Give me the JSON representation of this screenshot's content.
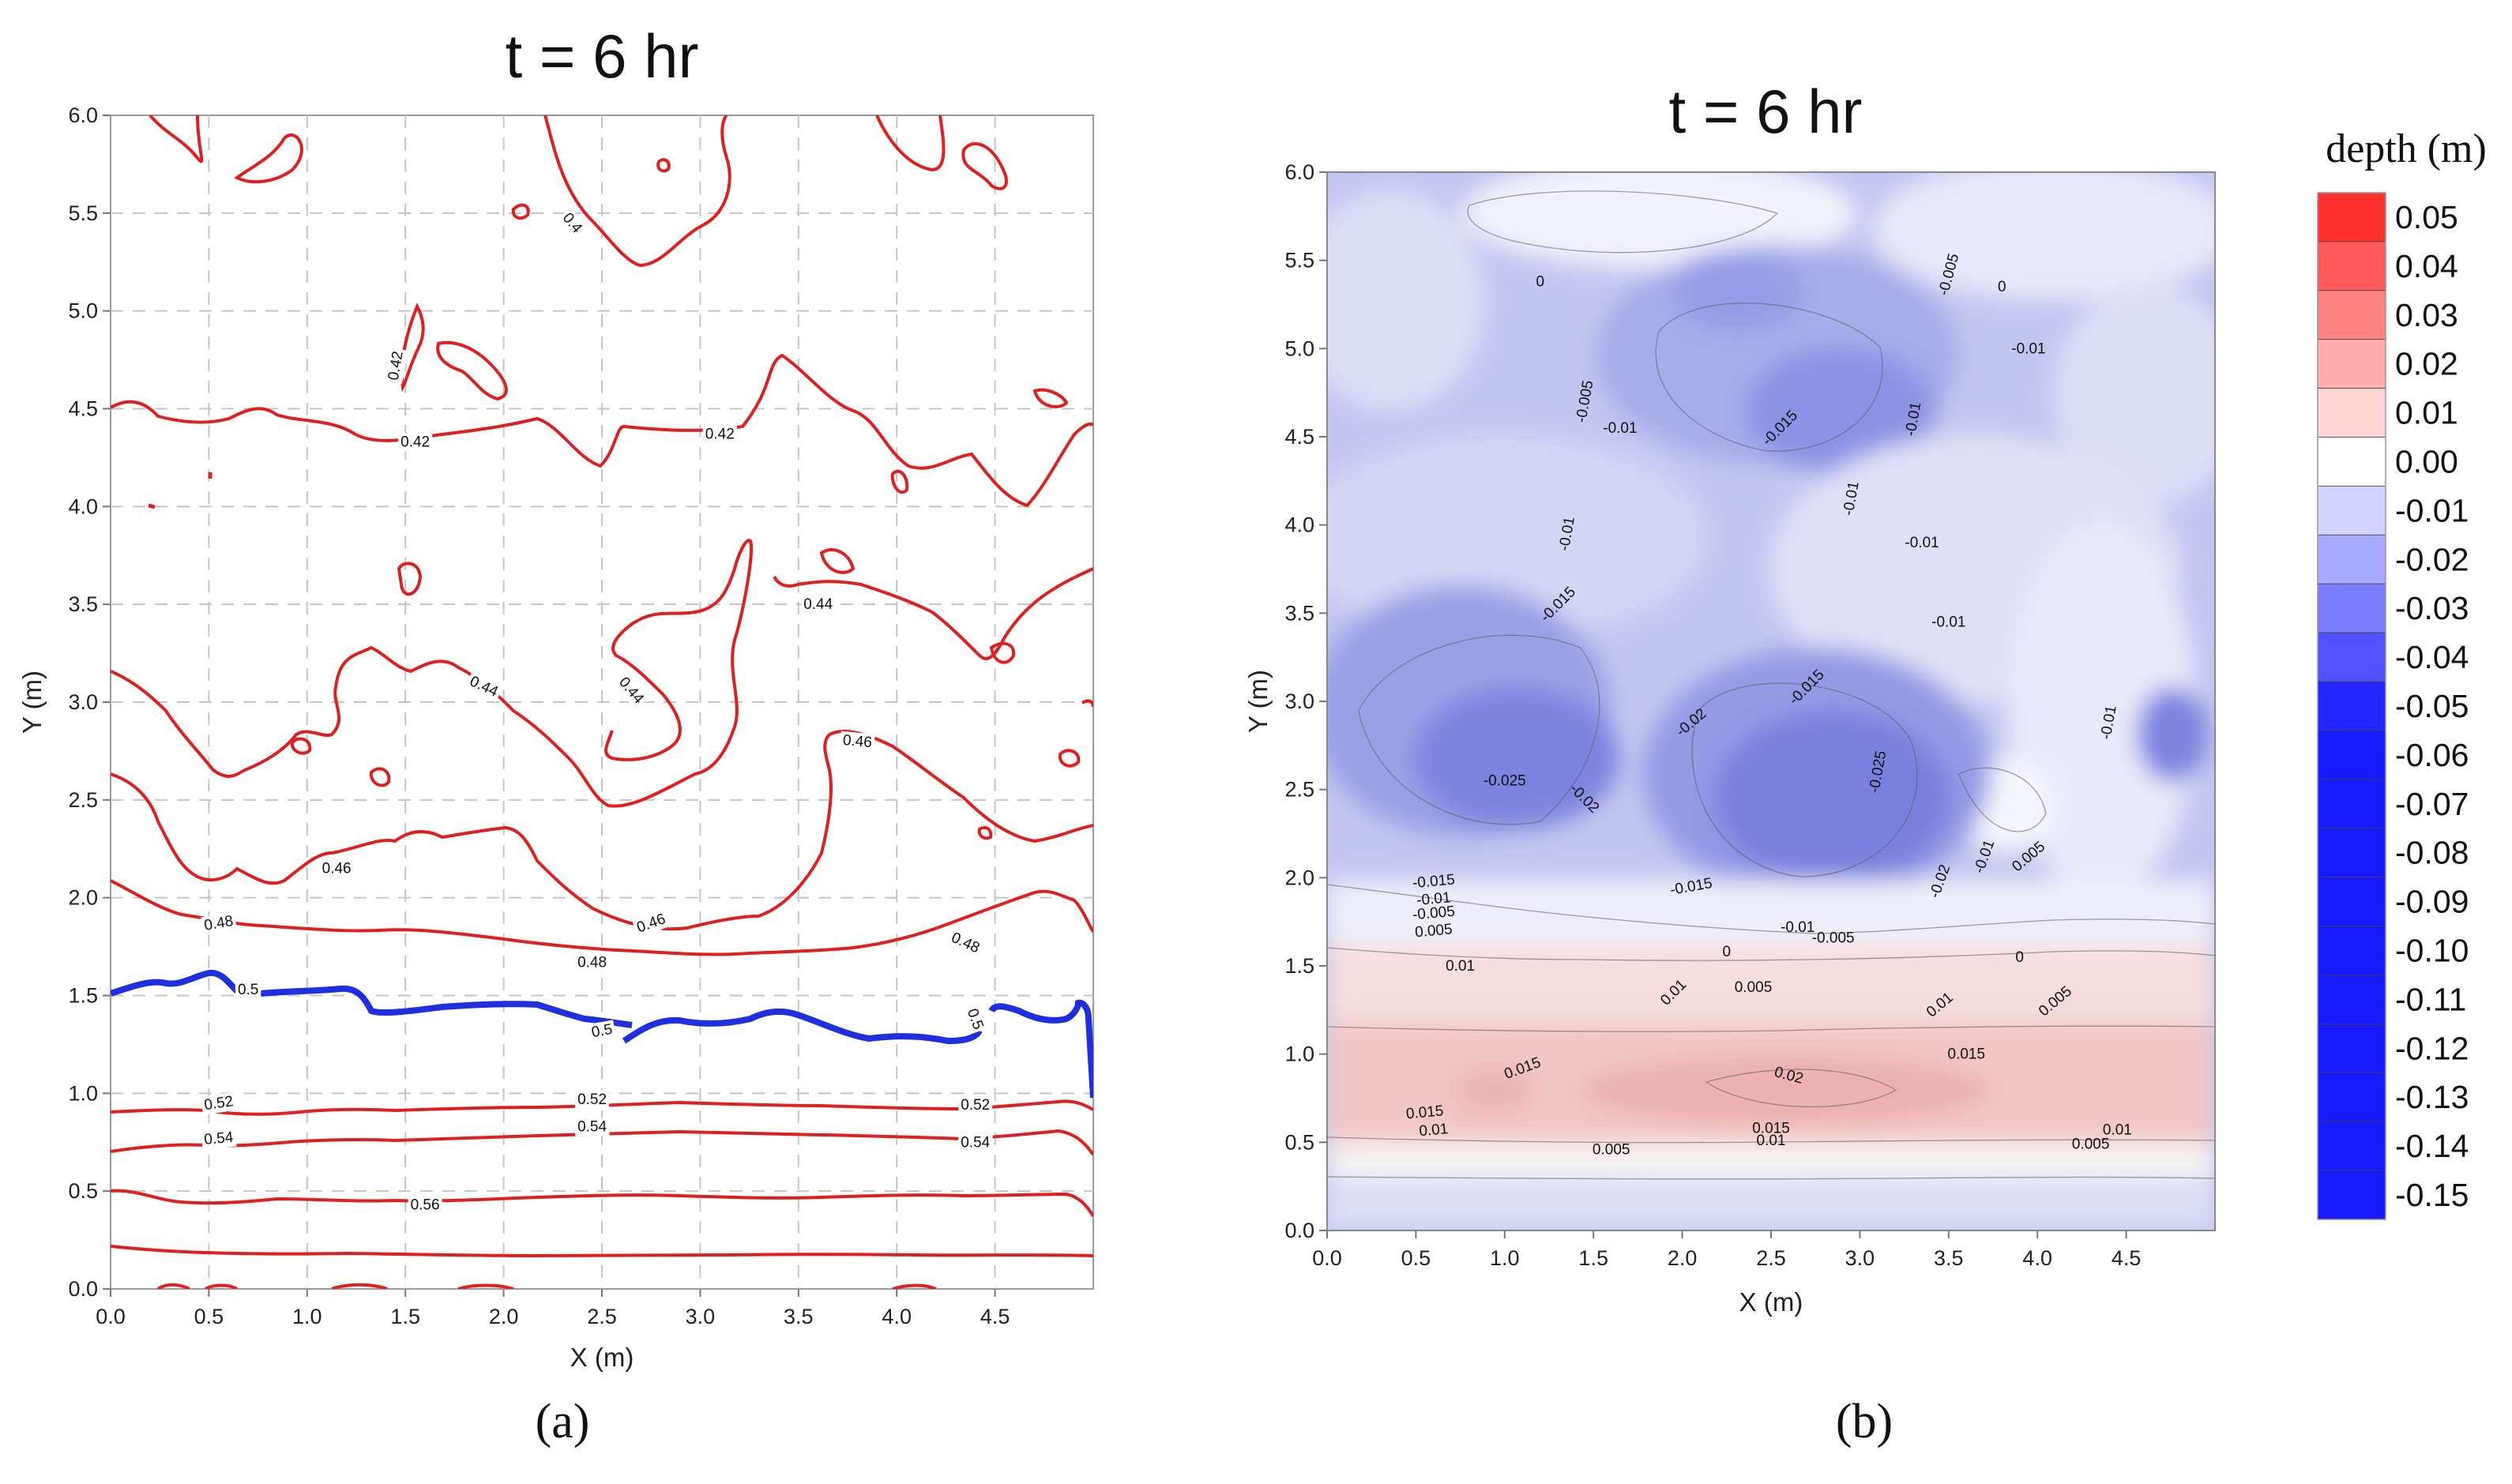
{
  "chart_data": [
    {
      "panel": "a",
      "type": "contour",
      "title": "t = 6 hr",
      "xlabel": "X (m)",
      "ylabel": "Y (m)",
      "xlim": [
        0,
        5.0
      ],
      "ylim": [
        0,
        6.0
      ],
      "xticks": [
        "0.0",
        "0.5",
        "1.0",
        "1.5",
        "2.0",
        "2.5",
        "3.0",
        "3.5",
        "4.0",
        "4.5"
      ],
      "yticks": [
        "0.0",
        "0.5",
        "1.0",
        "1.5",
        "2.0",
        "2.5",
        "3.0",
        "3.5",
        "4.0",
        "4.5",
        "5.0",
        "5.5",
        "6.0"
      ],
      "grid": true,
      "line_color": "#e02020",
      "highlight_color": "#1f2fe0",
      "levels": [
        {
          "value": 0.4,
          "label": "0.4",
          "highlight": false
        },
        {
          "value": 0.42,
          "label": "0.42",
          "highlight": false
        },
        {
          "value": 0.44,
          "label": "0.44",
          "highlight": false
        },
        {
          "value": 0.46,
          "label": "0.46",
          "highlight": false
        },
        {
          "value": 0.48,
          "label": "0.48",
          "highlight": false
        },
        {
          "value": 0.5,
          "label": "0.5",
          "highlight": true
        },
        {
          "value": 0.52,
          "label": "0.52",
          "highlight": false
        },
        {
          "value": 0.54,
          "label": "0.54",
          "highlight": false
        },
        {
          "value": 0.56,
          "label": "0.56",
          "highlight": false
        }
      ],
      "contour_labels": [
        {
          "text": "0.4",
          "x": 2.35,
          "y": 5.45,
          "rot": 50
        },
        {
          "text": "0.42",
          "x": 1.45,
          "y": 4.72,
          "rot": -80
        },
        {
          "text": "0.42",
          "x": 1.55,
          "y": 4.33,
          "rot": 0
        },
        {
          "text": "0.42",
          "x": 3.1,
          "y": 4.37,
          "rot": 0
        },
        {
          "text": "0.44",
          "x": 3.6,
          "y": 3.5,
          "rot": 0
        },
        {
          "text": "0.44",
          "x": 1.9,
          "y": 3.08,
          "rot": 25
        },
        {
          "text": "0.44",
          "x": 2.65,
          "y": 3.06,
          "rot": 50
        },
        {
          "text": "0.46",
          "x": 3.8,
          "y": 2.8,
          "rot": 5
        },
        {
          "text": "0.46",
          "x": 1.15,
          "y": 2.15,
          "rot": 0
        },
        {
          "text": "0.46",
          "x": 2.75,
          "y": 1.87,
          "rot": -20
        },
        {
          "text": "0.48",
          "x": 0.55,
          "y": 1.87,
          "rot": -10
        },
        {
          "text": "0.48",
          "x": 2.45,
          "y": 1.67,
          "rot": 0
        },
        {
          "text": "0.48",
          "x": 4.35,
          "y": 1.77,
          "rot": 25
        },
        {
          "text": "0.5",
          "x": 0.7,
          "y": 1.53,
          "rot": 0
        },
        {
          "text": "0.5",
          "x": 2.5,
          "y": 1.32,
          "rot": -10
        },
        {
          "text": "0.5",
          "x": 4.4,
          "y": 1.38,
          "rot": 70
        },
        {
          "text": "0.52",
          "x": 0.55,
          "y": 0.95,
          "rot": -8
        },
        {
          "text": "0.52",
          "x": 2.45,
          "y": 0.97,
          "rot": 0
        },
        {
          "text": "0.52",
          "x": 4.4,
          "y": 0.94,
          "rot": 0
        },
        {
          "text": "0.54",
          "x": 0.55,
          "y": 0.77,
          "rot": -5
        },
        {
          "text": "0.54",
          "x": 2.45,
          "y": 0.83,
          "rot": 0
        },
        {
          "text": "0.54",
          "x": 4.4,
          "y": 0.75,
          "rot": 0
        },
        {
          "text": "0.56",
          "x": 1.6,
          "y": 0.43,
          "rot": 0
        }
      ],
      "subfig_label": "(a)"
    },
    {
      "panel": "b",
      "type": "heatmap",
      "title": "t = 6 hr",
      "xlabel": "X (m)",
      "ylabel": "Y (m)",
      "xlim": [
        0,
        5.0
      ],
      "ylim": [
        0,
        6.0
      ],
      "xticks": [
        "0.0",
        "0.5",
        "1.0",
        "1.5",
        "2.0",
        "2.5",
        "3.0",
        "3.5",
        "4.0",
        "4.5"
      ],
      "yticks": [
        "0.0",
        "0.5",
        "1.0",
        "1.5",
        "2.0",
        "2.5",
        "3.0",
        "3.5",
        "4.0",
        "4.5",
        "5.0",
        "5.5",
        "6.0"
      ],
      "colorbar": {
        "title": "depth (m)",
        "labels": [
          "0.05",
          "0.04",
          "0.03",
          "0.02",
          "0.01",
          "0.00",
          "-0.01",
          "-0.02",
          "-0.03",
          "-0.04",
          "-0.05",
          "-0.06",
          "-0.07",
          "-0.08",
          "-0.09",
          "-0.10",
          "-0.11",
          "-0.12",
          "-0.13",
          "-0.14",
          "-0.15"
        ],
        "max_color": "#ff3030",
        "zero_color": "#ffffff",
        "min_color": "#1a1aff"
      },
      "contour_labels": [
        {
          "text": "0",
          "x": 1.2,
          "y": 5.38,
          "rot": 0
        },
        {
          "text": "-0.005",
          "x": 3.5,
          "y": 5.42,
          "rot": -75
        },
        {
          "text": "0",
          "x": 3.8,
          "y": 5.35,
          "rot": 0
        },
        {
          "text": "-0.01",
          "x": 3.95,
          "y": 5.0,
          "rot": 0
        },
        {
          "text": "-0.005",
          "x": 1.45,
          "y": 4.7,
          "rot": -80
        },
        {
          "text": "-0.01",
          "x": 1.65,
          "y": 4.55,
          "rot": 0
        },
        {
          "text": "-0.015",
          "x": 2.55,
          "y": 4.55,
          "rot": -45
        },
        {
          "text": "-0.01",
          "x": 3.3,
          "y": 4.6,
          "rot": -80
        },
        {
          "text": "-0.01",
          "x": 1.35,
          "y": 3.95,
          "rot": -80
        },
        {
          "text": "-0.01",
          "x": 2.95,
          "y": 4.15,
          "rot": -80
        },
        {
          "text": "-0.01",
          "x": 3.35,
          "y": 3.9,
          "rot": 0
        },
        {
          "text": "-0.015",
          "x": 1.3,
          "y": 3.55,
          "rot": -45
        },
        {
          "text": "-0.01",
          "x": 3.5,
          "y": 3.45,
          "rot": 0
        },
        {
          "text": "-0.015",
          "x": 2.7,
          "y": 3.08,
          "rot": -45
        },
        {
          "text": "-0.02",
          "x": 2.05,
          "y": 2.88,
          "rot": -40
        },
        {
          "text": "-0.01",
          "x": 4.4,
          "y": 2.88,
          "rot": -80
        },
        {
          "text": "-0.025",
          "x": 1.0,
          "y": 2.55,
          "rot": 0
        },
        {
          "text": "-0.02",
          "x": 1.45,
          "y": 2.45,
          "rot": 45
        },
        {
          "text": "-0.025",
          "x": 3.1,
          "y": 2.6,
          "rot": -80
        },
        {
          "text": "-0.01",
          "x": 3.7,
          "y": 2.12,
          "rot": -70
        },
        {
          "text": "0.005",
          "x": 3.95,
          "y": 2.12,
          "rot": -40
        },
        {
          "text": "-0.02",
          "x": 3.45,
          "y": 1.98,
          "rot": -70
        },
        {
          "text": "-0.015",
          "x": 0.6,
          "y": 1.98,
          "rot": -5
        },
        {
          "text": "-0.015",
          "x": 2.05,
          "y": 1.95,
          "rot": -10
        },
        {
          "text": "-0.01",
          "x": 0.6,
          "y": 1.88,
          "rot": -5
        },
        {
          "text": "-0.005",
          "x": 0.6,
          "y": 1.8,
          "rot": -5
        },
        {
          "text": "0.005",
          "x": 0.6,
          "y": 1.7,
          "rot": -5
        },
        {
          "text": "-0.01",
          "x": 2.65,
          "y": 1.72,
          "rot": 0
        },
        {
          "text": "-0.005",
          "x": 2.85,
          "y": 1.66,
          "rot": 0
        },
        {
          "text": "0",
          "x": 2.25,
          "y": 1.58,
          "rot": 0
        },
        {
          "text": "0",
          "x": 3.9,
          "y": 1.55,
          "rot": 0
        },
        {
          "text": "0.01",
          "x": 0.75,
          "y": 1.5,
          "rot": 0
        },
        {
          "text": "0.01",
          "x": 1.95,
          "y": 1.35,
          "rot": -45
        },
        {
          "text": "0.005",
          "x": 2.4,
          "y": 1.38,
          "rot": 0
        },
        {
          "text": "0.01",
          "x": 3.45,
          "y": 1.28,
          "rot": -40
        },
        {
          "text": "0.005",
          "x": 4.1,
          "y": 1.3,
          "rot": -40
        },
        {
          "text": "0.015",
          "x": 1.1,
          "y": 0.92,
          "rot": -20
        },
        {
          "text": "0.02",
          "x": 2.6,
          "y": 0.88,
          "rot": 15
        },
        {
          "text": "0.015",
          "x": 3.6,
          "y": 1.0,
          "rot": 0
        },
        {
          "text": "0.015",
          "x": 0.55,
          "y": 0.67,
          "rot": -5
        },
        {
          "text": "0.01",
          "x": 0.6,
          "y": 0.57,
          "rot": -5
        },
        {
          "text": "0.015",
          "x": 2.5,
          "y": 0.58,
          "rot": 0
        },
        {
          "text": "0.01",
          "x": 2.5,
          "y": 0.51,
          "rot": 0
        },
        {
          "text": "0.005",
          "x": 1.6,
          "y": 0.46,
          "rot": 0
        },
        {
          "text": "0.01",
          "x": 4.45,
          "y": 0.57,
          "rot": 0
        },
        {
          "text": "0.005",
          "x": 4.3,
          "y": 0.49,
          "rot": 0
        }
      ],
      "subfig_label": "(b)"
    }
  ]
}
